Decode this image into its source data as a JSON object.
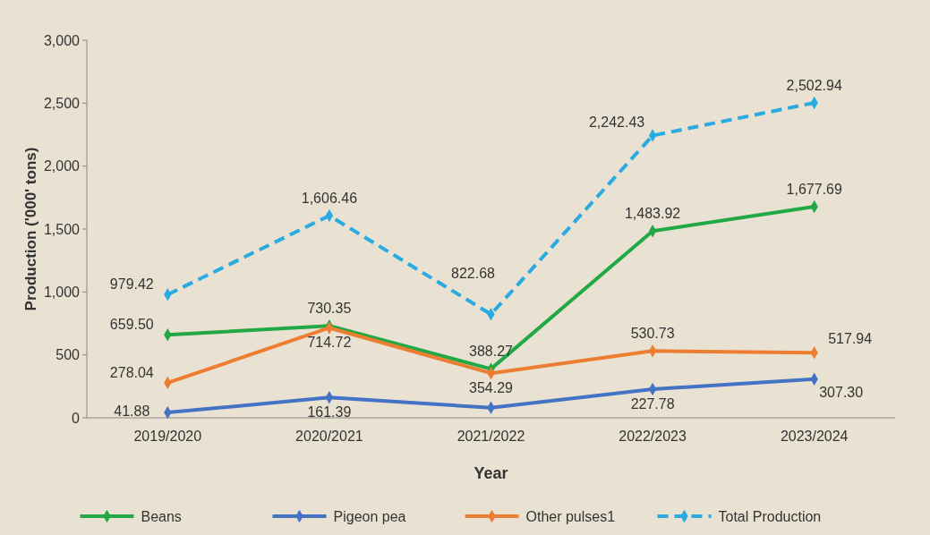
{
  "chart_data": {
    "type": "line",
    "xlabel": "Year",
    "ylabel": "Production ('000' tons)",
    "categories": [
      "2019/2020",
      "2020/2021",
      "2021/2022",
      "2022/2023",
      "2023/2024"
    ],
    "ylim": [
      0,
      3000
    ],
    "yticks": [
      {
        "value": 0,
        "label": "0"
      },
      {
        "value": 500,
        "label": "500"
      },
      {
        "value": 1000,
        "label": "1,000"
      },
      {
        "value": 1500,
        "label": "1,500"
      },
      {
        "value": 2000,
        "label": "2,000"
      },
      {
        "value": 2500,
        "label": "2,500"
      },
      {
        "value": 3000,
        "label": "3,000"
      }
    ],
    "marker": "diamond",
    "legend": "bottom",
    "grid": false,
    "series": [
      {
        "name": "Beans",
        "color": "#22a845",
        "values": [
          659.5,
          730.35,
          388.27,
          1483.92,
          1677.69
        ],
        "value_labels": [
          "659.50",
          "730.35",
          "388.27",
          "1,483.92",
          "1,677.69"
        ]
      },
      {
        "name": "Pigeon pea",
        "color": "#4472c4",
        "values": [
          41.88,
          161.39,
          80,
          227.78,
          307.3
        ],
        "value_labels": [
          "41.88",
          "161.39",
          null,
          "227.78",
          "307.30"
        ]
      },
      {
        "name": "Other pulses1",
        "color": "#ed7d31",
        "values": [
          278.04,
          714.72,
          354.29,
          530.73,
          517.94
        ],
        "value_labels": [
          "278.04",
          "714.72",
          "354.29",
          "530.73",
          "517.94"
        ]
      },
      {
        "name": "Total Production",
        "color": "#29abe2",
        "line_style": "dashed",
        "values": [
          979.42,
          1606.46,
          822.68,
          2242.43,
          2502.94
        ],
        "value_labels": [
          "979.42",
          "1,606.46",
          "822.68",
          "2,242.43",
          "2,502.94"
        ]
      }
    ]
  }
}
